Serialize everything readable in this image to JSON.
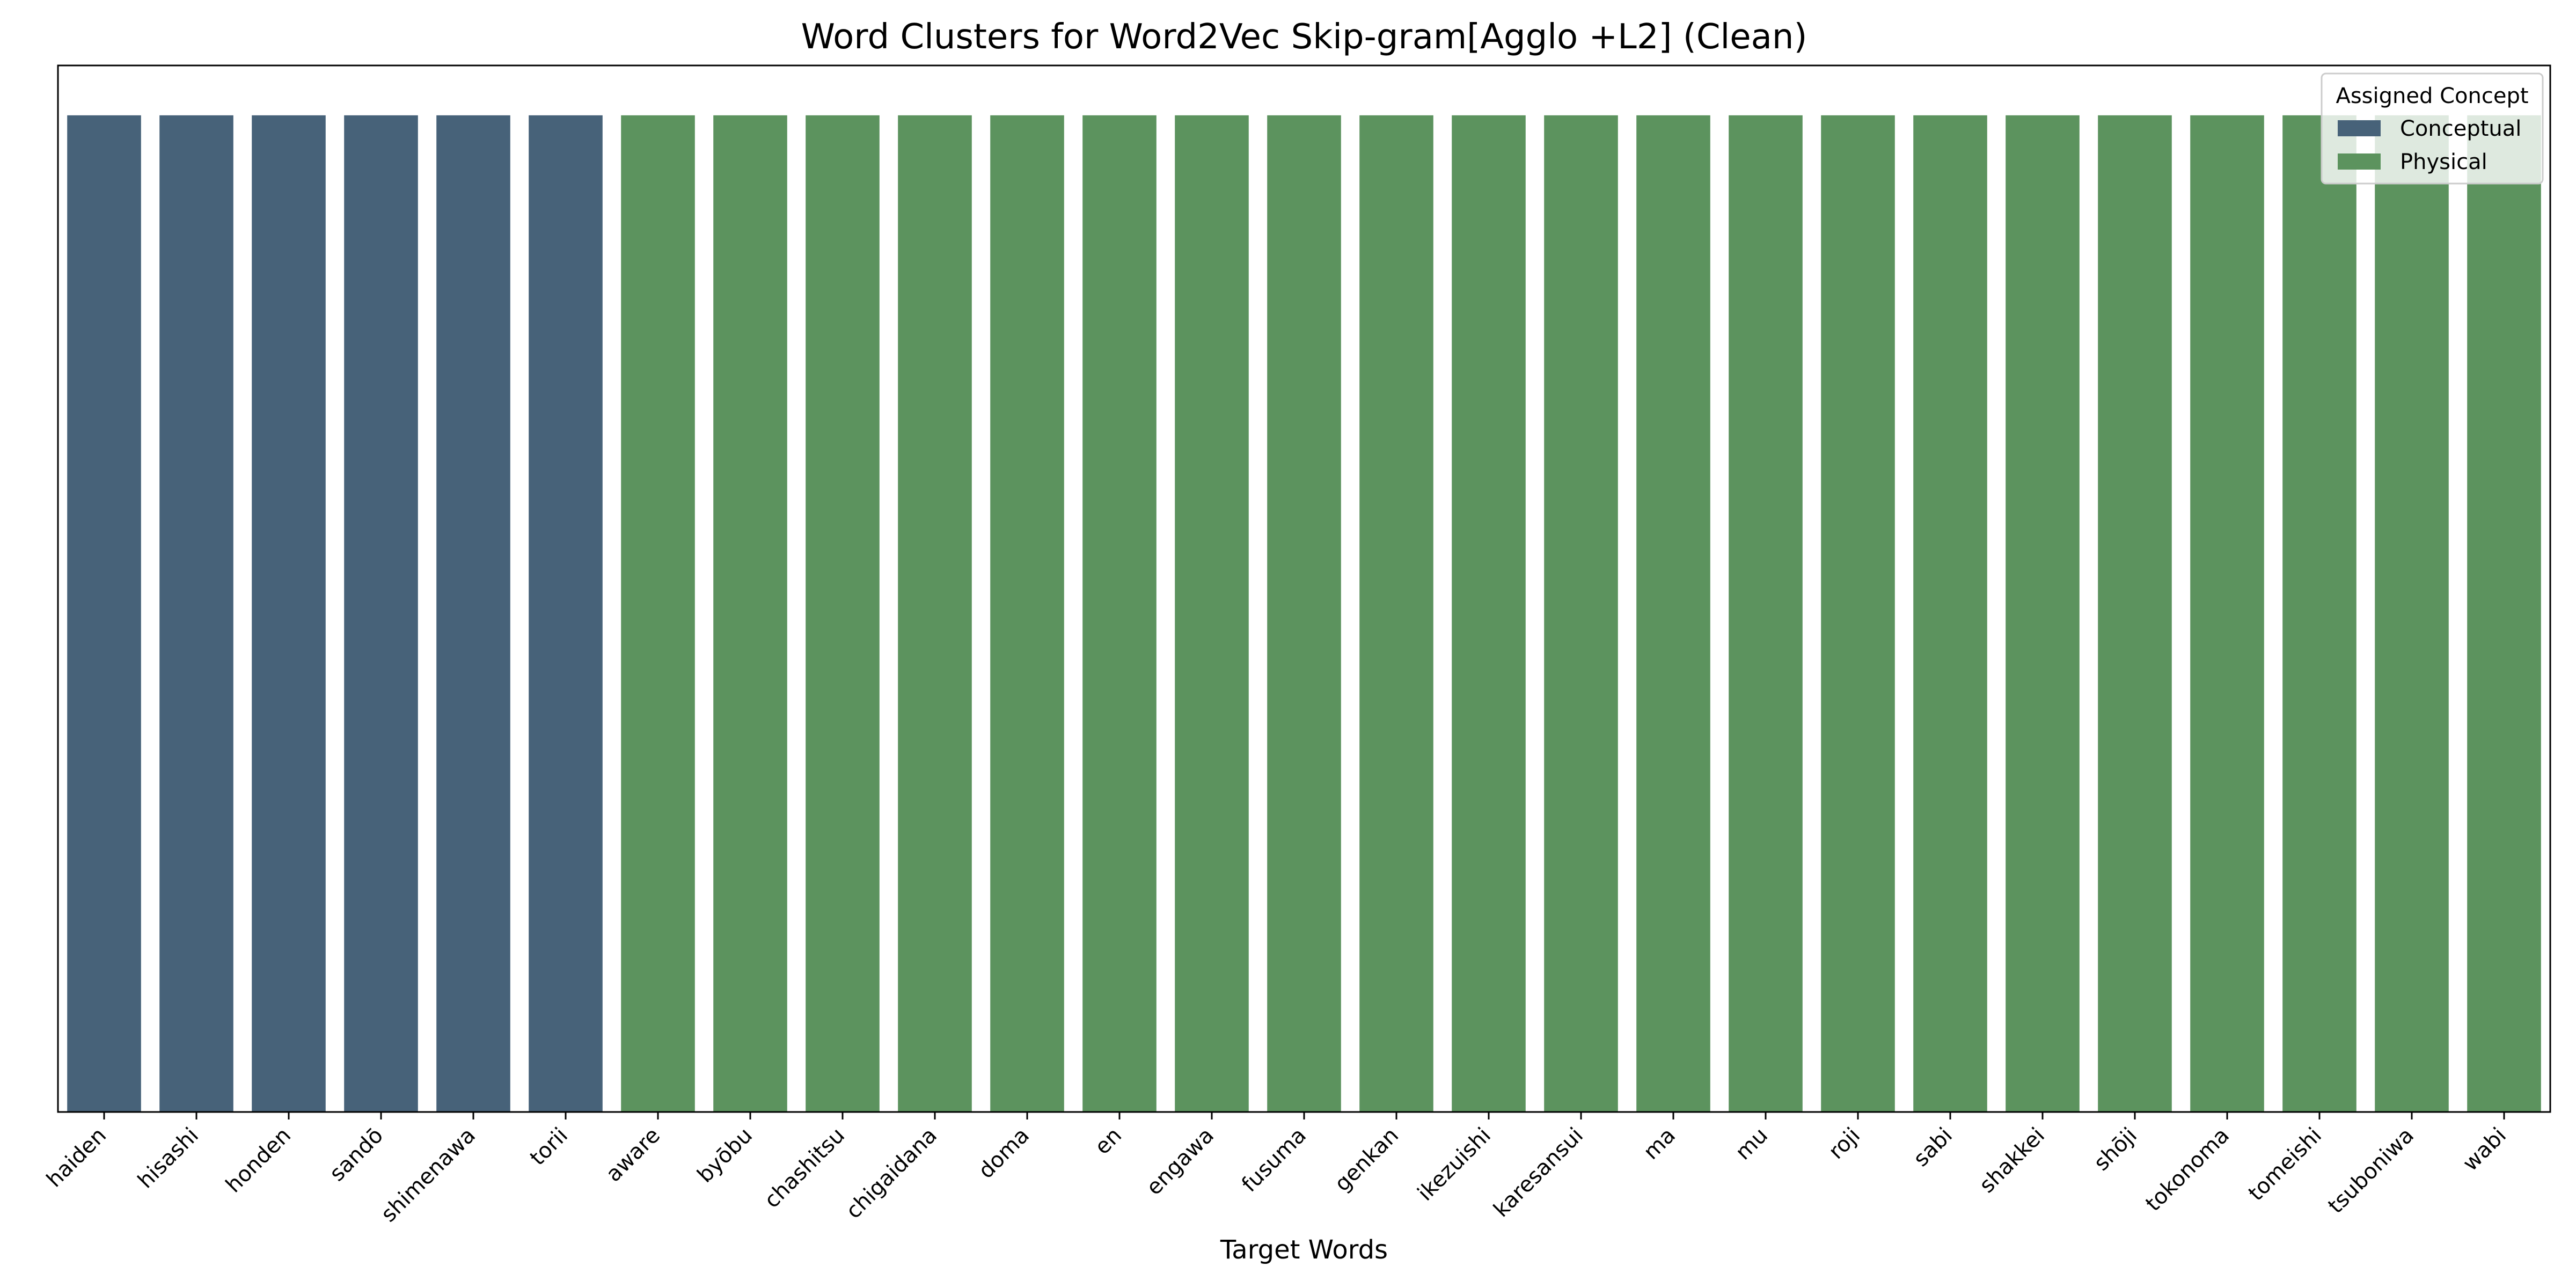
{
  "chart_data": {
    "type": "bar",
    "title": "Word Clusters for Word2Vec Skip-gram[Agglo +L2] (Clean)",
    "xlabel": "Target Words",
    "ylabel": "",
    "ylim": [
      0,
      1.05
    ],
    "grid": false,
    "legend_position": "top-right",
    "legend_title": "Assigned Concept",
    "categories": [
      "haiden",
      "hisashi",
      "honden",
      "sandō",
      "shimenawa",
      "torii",
      "aware",
      "byōbu",
      "chashitsu",
      "chigaidana",
      "doma",
      "en",
      "engawa",
      "fusuma",
      "genkan",
      "ikezuishi",
      "karesansui",
      "ma",
      "mu",
      "roji",
      "sabi",
      "shakkei",
      "shōji",
      "tokonoma",
      "tomeishi",
      "tsuboniwa",
      "wabi"
    ],
    "values": [
      1,
      1,
      1,
      1,
      1,
      1,
      1,
      1,
      1,
      1,
      1,
      1,
      1,
      1,
      1,
      1,
      1,
      1,
      1,
      1,
      1,
      1,
      1,
      1,
      1,
      1,
      1
    ],
    "assigned_concept": [
      "Conceptual",
      "Conceptual",
      "Conceptual",
      "Conceptual",
      "Conceptual",
      "Conceptual",
      "Physical",
      "Physical",
      "Physical",
      "Physical",
      "Physical",
      "Physical",
      "Physical",
      "Physical",
      "Physical",
      "Physical",
      "Physical",
      "Physical",
      "Physical",
      "Physical",
      "Physical",
      "Physical",
      "Physical",
      "Physical",
      "Physical",
      "Physical",
      "Physical"
    ],
    "series": [
      {
        "name": "Conceptual",
        "color": "#476279"
      },
      {
        "name": "Physical",
        "color": "#5c935e"
      }
    ]
  }
}
